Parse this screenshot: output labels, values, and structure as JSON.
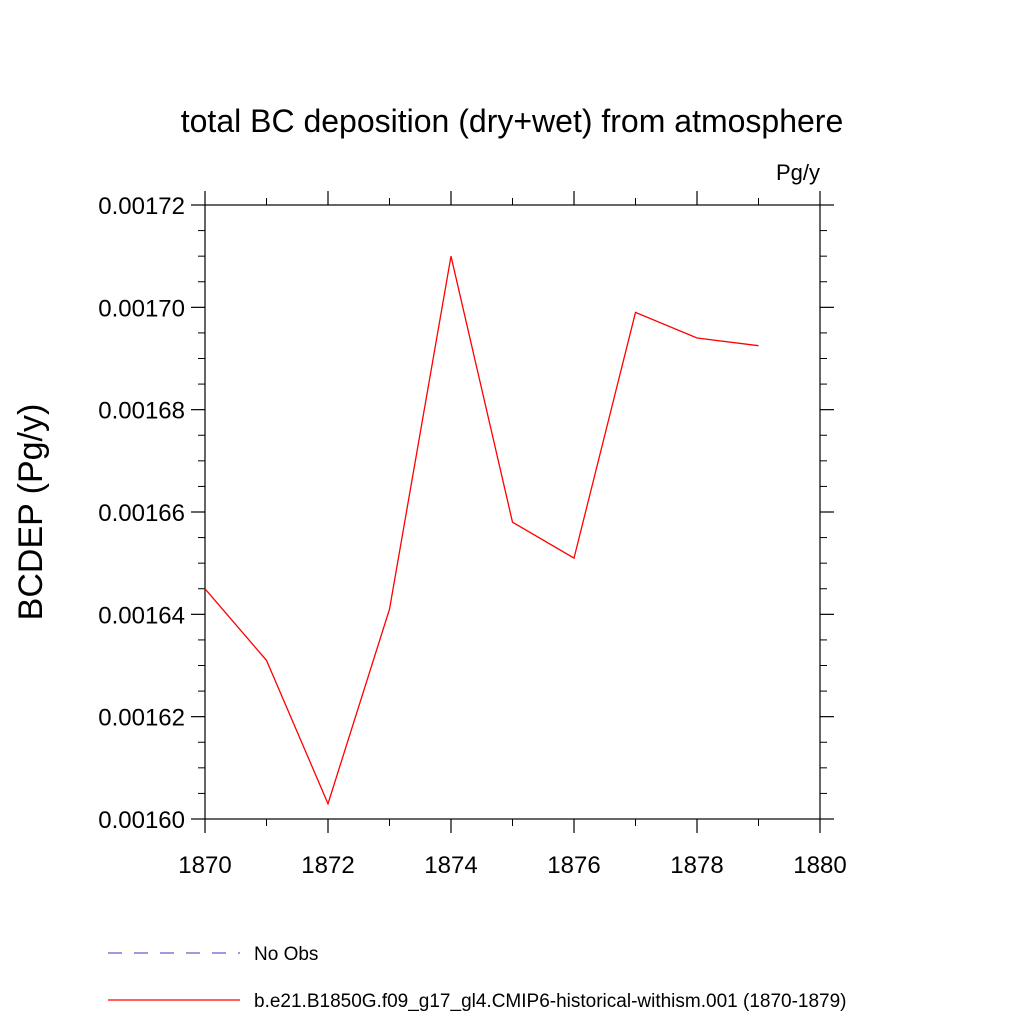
{
  "chart_data": {
    "type": "line",
    "title": "total BC deposition (dry+wet) from atmosphere",
    "units_label": "Pg/y",
    "ylabel": "BCDEP  (Pg/y)",
    "xlabel": "",
    "xlim": [
      1870,
      1880
    ],
    "ylim": [
      0.0016,
      0.00172
    ],
    "x_ticks": [
      1870,
      1872,
      1874,
      1876,
      1878,
      1880
    ],
    "x_tick_labels": [
      "1870",
      "1872",
      "1874",
      "1876",
      "1878",
      "1880"
    ],
    "y_ticks": [
      0.0016,
      0.00162,
      0.00164,
      0.00166,
      0.00168,
      0.0017,
      0.00172
    ],
    "y_tick_labels": [
      "0.00160",
      "0.00162",
      "0.00164",
      "0.00166",
      "0.00168",
      "0.00170",
      "0.00172"
    ],
    "grid": false,
    "legend_position": "bottom",
    "series": [
      {
        "name": "b.e21.B1850G.f09_g17_gl4.CMIP6-historical-withism.001 (1870-1879)",
        "color": "#ff0000",
        "style": "solid",
        "x": [
          1870,
          1871,
          1872,
          1873,
          1874,
          1875,
          1876,
          1877,
          1878,
          1879
        ],
        "y": [
          0.001645,
          0.001631,
          0.001603,
          0.001641,
          0.00171,
          0.001658,
          0.001651,
          0.001699,
          0.001694,
          0.0016925
        ]
      }
    ],
    "legend": [
      {
        "label": "No Obs",
        "color": "#6a5acd",
        "style": "dashed"
      },
      {
        "label": "b.e21.B1850G.f09_g17_gl4.CMIP6-historical-withism.001 (1870-1879)",
        "color": "#ff0000",
        "style": "solid"
      }
    ]
  }
}
